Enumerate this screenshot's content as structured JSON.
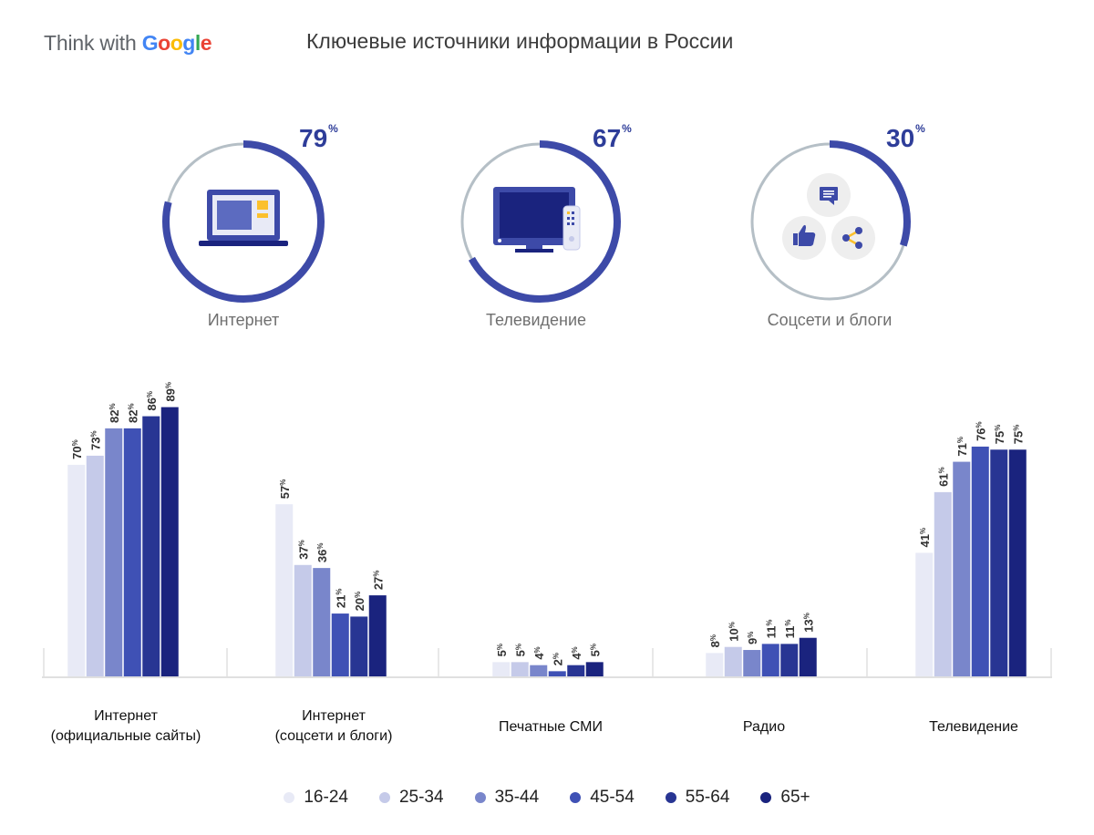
{
  "header": {
    "logo_prefix": "Think with",
    "logo_brand": "Google",
    "title": "Ключевые источники информации в России"
  },
  "donuts": [
    {
      "label": "Интернет",
      "value": 79,
      "icon": "laptop-icon"
    },
    {
      "label": "Телевидение",
      "value": 67,
      "icon": "tv-icon"
    },
    {
      "label": "Соцсети и блоги",
      "value": 30,
      "icon": "social-icons"
    }
  ],
  "colors": {
    "ring_fill": "#3d4aa8",
    "ring_track": "#b5bfc6",
    "accent": "#2e3d99",
    "icon_yellow": "#fbc02d",
    "ages": [
      "#e8eaf6",
      "#c5cae9",
      "#7986cb",
      "#3f51b5",
      "#283593",
      "#1a237e"
    ]
  },
  "chart_data": {
    "type": "bar",
    "categories": [
      "Интернет\n(официальные сайты)",
      "Интернет\n(соцсети и блоги)",
      "Печатные СМИ",
      "Радио",
      "Телевидение"
    ],
    "series": [
      {
        "name": "16-24",
        "values": [
          70,
          57,
          5,
          8,
          41
        ]
      },
      {
        "name": "25-34",
        "values": [
          73,
          37,
          5,
          10,
          61
        ]
      },
      {
        "name": "35-44",
        "values": [
          82,
          36,
          4,
          9,
          71
        ]
      },
      {
        "name": "45-54",
        "values": [
          82,
          21,
          2,
          11,
          76
        ]
      },
      {
        "name": "55-64",
        "values": [
          86,
          20,
          4,
          11,
          75
        ]
      },
      {
        "name": "65+",
        "values": [
          89,
          27,
          5,
          13,
          75
        ]
      }
    ],
    "value_suffix": "%",
    "legend_position": "bottom",
    "grid": false,
    "ylim": [
      0,
      100
    ]
  }
}
